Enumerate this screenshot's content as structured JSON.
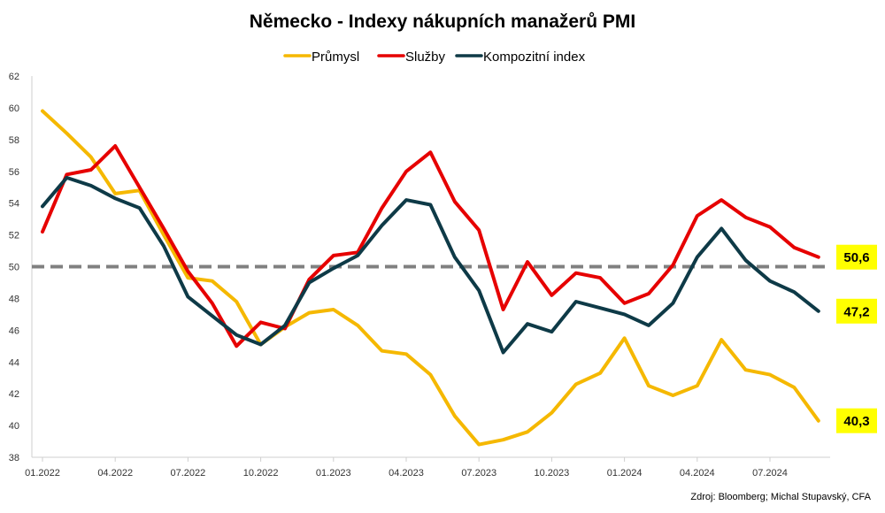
{
  "chart_data": {
    "type": "line",
    "title": "Německo - Indexy nákupních manažerů PMI",
    "source": "Zdroj: Bloomberg; Michal Stupavský, CFA",
    "ylim": [
      38,
      62
    ],
    "yticks": [
      "62",
      "60",
      "58",
      "56",
      "54",
      "52",
      "50",
      "48",
      "46",
      "44",
      "42",
      "40",
      "38"
    ],
    "xtick_labels": [
      "01.2022",
      "04.2022",
      "07.2022",
      "10.2022",
      "01.2023",
      "04.2023",
      "07.2023",
      "10.2023",
      "01.2024",
      "04.2024",
      "07.2024"
    ],
    "reference_line": 50,
    "legend_position": "top",
    "grid": false,
    "x": [
      "01.2022",
      "02.2022",
      "03.2022",
      "04.2022",
      "05.2022",
      "06.2022",
      "07.2022",
      "08.2022",
      "09.2022",
      "10.2022",
      "11.2022",
      "12.2022",
      "01.2023",
      "02.2023",
      "03.2023",
      "04.2023",
      "05.2023",
      "06.2023",
      "07.2023",
      "08.2023",
      "09.2023",
      "10.2023",
      "11.2023",
      "12.2023",
      "01.2024",
      "02.2024",
      "03.2024",
      "04.2024",
      "05.2024",
      "06.2024",
      "07.2024",
      "08.2024",
      "09.2024"
    ],
    "series": [
      {
        "name": "Průmysl",
        "color": "#F5B800",
        "values": [
          59.8,
          58.4,
          56.9,
          54.6,
          54.8,
          52.0,
          49.3,
          49.1,
          47.8,
          45.1,
          46.2,
          47.1,
          47.3,
          46.3,
          44.7,
          44.5,
          43.2,
          40.6,
          38.8,
          39.1,
          39.6,
          40.8,
          42.6,
          43.3,
          45.5,
          42.5,
          41.9,
          42.5,
          45.4,
          43.5,
          43.2,
          42.4,
          40.3
        ]
      },
      {
        "name": "Služby",
        "color": "#E60000",
        "values": [
          52.2,
          55.8,
          56.1,
          57.6,
          55.0,
          52.4,
          49.7,
          47.7,
          45.0,
          46.5,
          46.1,
          49.2,
          50.7,
          50.9,
          53.7,
          56.0,
          57.2,
          54.1,
          52.3,
          47.3,
          50.3,
          48.2,
          49.6,
          49.3,
          47.7,
          48.3,
          50.1,
          53.2,
          54.2,
          53.1,
          52.5,
          51.2,
          50.6
        ]
      },
      {
        "name": "Kompozitní index",
        "color": "#0E3A47",
        "values": [
          53.8,
          55.6,
          55.1,
          54.3,
          53.7,
          51.3,
          48.1,
          46.9,
          45.7,
          45.1,
          46.3,
          49.0,
          49.9,
          50.7,
          52.6,
          54.2,
          53.9,
          50.6,
          48.5,
          44.6,
          46.4,
          45.9,
          47.8,
          47.4,
          47.0,
          46.3,
          47.7,
          50.6,
          52.4,
          50.4,
          49.1,
          48.4,
          47.2
        ]
      }
    ],
    "end_labels": [
      {
        "text": "50,6",
        "series": "Služby"
      },
      {
        "text": "47,2",
        "series": "Kompozitní index"
      },
      {
        "text": "40,3",
        "series": "Průmysl"
      }
    ],
    "end_label_color": "#FFFF00"
  }
}
